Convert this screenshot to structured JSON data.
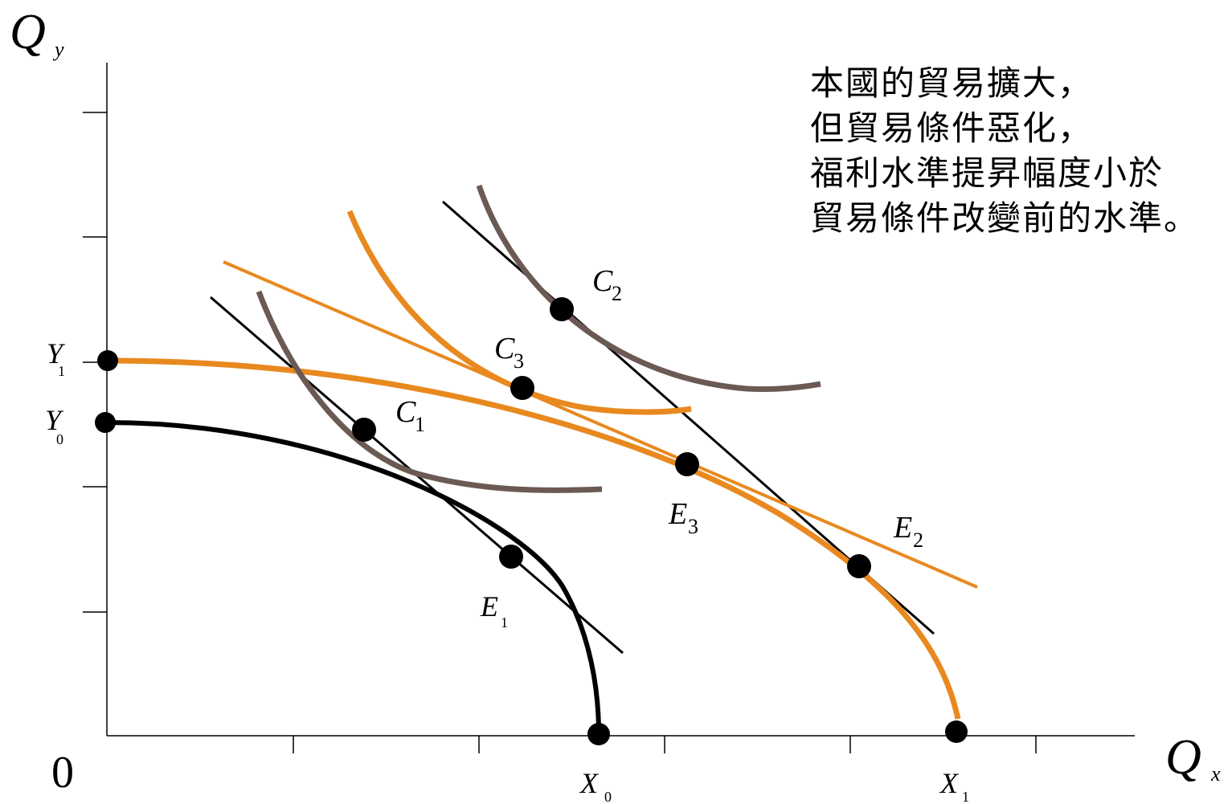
{
  "axes": {
    "y_label": "Q",
    "y_label_sub": "y",
    "x_label": "Q",
    "x_label_sub": "x",
    "origin": "0"
  },
  "labels": {
    "Y1": {
      "main": "Y",
      "sub": "1"
    },
    "Y0": {
      "main": "Y",
      "sub": "0"
    },
    "X0": {
      "main": "X",
      "sub": "0"
    },
    "X1": {
      "main": "X",
      "sub": "1"
    },
    "C1": {
      "main": "C",
      "sub": "1"
    },
    "C2": {
      "main": "C",
      "sub": "2"
    },
    "C3": {
      "main": "C",
      "sub": "3"
    },
    "E1": {
      "main": "E",
      "sub": "1"
    },
    "E2": {
      "main": "E",
      "sub": "2"
    },
    "E3": {
      "main": "E",
      "sub": "3"
    }
  },
  "note": {
    "lines": [
      "本國的貿易擴大，",
      "但貿易條件惡化，",
      "福利水準提昇幅度小於",
      "貿易條件改變前的水準。"
    ]
  },
  "colors": {
    "orange": "#E8891F",
    "brown": "#6B5A53",
    "black": "#000000"
  }
}
